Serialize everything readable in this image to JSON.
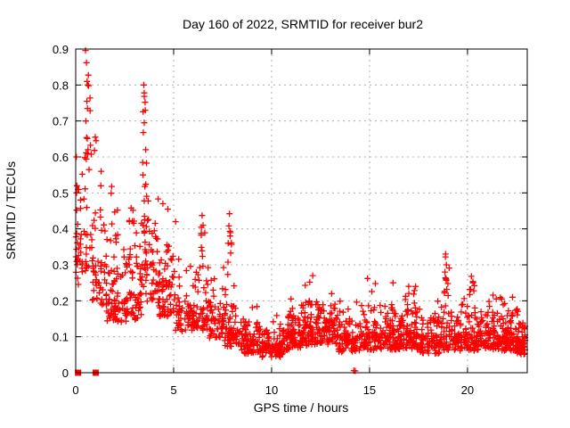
{
  "page": {
    "background_color": "#ffffff"
  },
  "chart_data": {
    "type": "scatter",
    "title": "Day 160 of 2022, SRMTID for receiver bur2",
    "xlabel": "GPS time / hours",
    "ylabel": "SRMTID / TECUs",
    "xlim": [
      0,
      23.05
    ],
    "ylim": [
      0,
      0.9
    ],
    "xticks": [
      0,
      5,
      10,
      15,
      20
    ],
    "yticks": [
      0,
      0.1,
      0.2,
      0.3,
      0.4,
      0.5,
      0.6,
      0.7,
      0.8,
      0.9
    ],
    "grid": true,
    "grid_style": "dashed",
    "grid_color": "#b0b0b0",
    "axis_color": "#000000",
    "legend": "none",
    "marker": {
      "shape": "plus",
      "color": "#ff0000",
      "size": 7
    },
    "description": "Dense scatter of SRMTID values vs GPS time; high variability 0-5 h with peaks to 0.9 TECUs near 0.5 h and 0.8 TECUs near 3.5 h, decaying to a noisy 0.05-0.2 band after 8 h with minor spikes near 19 h (0.33) and 20.2 h (0.27).",
    "zero_flag_points": [
      [
        0.12,
        0
      ],
      [
        1.02,
        0
      ]
    ],
    "peak_points": [
      [
        0.5,
        0.896
      ],
      [
        0.55,
        0.862
      ],
      [
        0.58,
        0.81
      ],
      [
        0.62,
        0.8
      ],
      [
        0.66,
        0.798
      ],
      [
        0.73,
        0.764
      ],
      [
        0.6,
        0.735
      ],
      [
        0.52,
        0.7
      ],
      [
        0.03,
        0.6
      ],
      [
        0.06,
        0.52
      ],
      [
        0.04,
        0.5
      ],
      [
        0.05,
        0.452
      ],
      [
        1.0,
        0.655
      ],
      [
        1.04,
        0.645
      ],
      [
        0.96,
        0.618
      ],
      [
        1.3,
        0.56
      ],
      [
        1.28,
        0.52
      ],
      [
        3.48,
        0.8
      ],
      [
        3.5,
        0.778
      ],
      [
        3.54,
        0.752
      ],
      [
        3.55,
        0.73
      ],
      [
        3.5,
        0.695
      ],
      [
        3.45,
        0.668
      ],
      [
        3.58,
        0.62
      ],
      [
        3.42,
        0.585
      ],
      [
        4.45,
        0.47
      ],
      [
        4.7,
        0.455
      ],
      [
        5.1,
        0.42
      ],
      [
        6.45,
        0.437
      ],
      [
        6.5,
        0.41
      ],
      [
        7.85,
        0.442
      ],
      [
        7.82,
        0.408
      ],
      [
        7.88,
        0.38
      ],
      [
        11.95,
        0.252
      ],
      [
        12.1,
        0.27
      ],
      [
        14.9,
        0.262
      ],
      [
        15.3,
        0.248
      ],
      [
        16.2,
        0.25
      ],
      [
        17.35,
        0.24
      ],
      [
        18.88,
        0.33
      ],
      [
        18.92,
        0.3
      ],
      [
        18.85,
        0.28
      ],
      [
        18.9,
        0.262
      ],
      [
        19.0,
        0.248
      ],
      [
        18.82,
        0.222
      ],
      [
        20.2,
        0.268
      ],
      [
        20.28,
        0.25
      ],
      [
        14.2,
        0.006
      ],
      [
        14.27,
        0.005
      ],
      [
        21.75,
        0.205
      ],
      [
        22.3,
        0.21
      ],
      [
        22.88,
        0.125
      ]
    ],
    "cloud_bands": {
      "columns": [
        "x_start",
        "x_end",
        "count",
        "y_low",
        "y_median",
        "y_high"
      ],
      "rows": [
        [
          0.0,
          0.15,
          16,
          0.2,
          0.33,
          0.62
        ],
        [
          0.1,
          0.9,
          34,
          0.25,
          0.38,
          0.6
        ],
        [
          0.45,
          0.8,
          13,
          0.45,
          0.62,
          0.88
        ],
        [
          0.85,
          1.6,
          48,
          0.15,
          0.3,
          0.56
        ],
        [
          1.8,
          2.15,
          10,
          0.33,
          0.44,
          0.56
        ],
        [
          1.55,
          2.65,
          75,
          0.12,
          0.21,
          0.38
        ],
        [
          2.7,
          3.05,
          9,
          0.3,
          0.42,
          0.54
        ],
        [
          2.6,
          3.35,
          55,
          0.13,
          0.21,
          0.42
        ],
        [
          3.4,
          3.7,
          13,
          0.35,
          0.55,
          0.78
        ],
        [
          3.35,
          4.25,
          62,
          0.16,
          0.3,
          0.52
        ],
        [
          4.25,
          5.0,
          60,
          0.13,
          0.25,
          0.47
        ],
        [
          5.0,
          6.05,
          68,
          0.1,
          0.17,
          0.33
        ],
        [
          6.05,
          6.75,
          46,
          0.1,
          0.18,
          0.4
        ],
        [
          6.4,
          6.6,
          7,
          0.28,
          0.36,
          0.43
        ],
        [
          6.75,
          7.65,
          58,
          0.08,
          0.15,
          0.3
        ],
        [
          7.75,
          7.95,
          8,
          0.25,
          0.34,
          0.44
        ],
        [
          7.6,
          8.45,
          62,
          0.06,
          0.12,
          0.25
        ],
        [
          8.45,
          9.4,
          80,
          0.04,
          0.09,
          0.19
        ],
        [
          9.4,
          10.6,
          90,
          0.03,
          0.08,
          0.16
        ],
        [
          10.6,
          11.6,
          88,
          0.05,
          0.11,
          0.22
        ],
        [
          11.6,
          12.45,
          82,
          0.06,
          0.13,
          0.26
        ],
        [
          12.45,
          13.4,
          88,
          0.06,
          0.13,
          0.23
        ],
        [
          13.4,
          14.6,
          90,
          0.04,
          0.1,
          0.2
        ],
        [
          14.6,
          15.65,
          84,
          0.05,
          0.11,
          0.24
        ],
        [
          15.65,
          16.65,
          84,
          0.05,
          0.11,
          0.24
        ],
        [
          16.65,
          17.6,
          82,
          0.05,
          0.11,
          0.25
        ],
        [
          17.6,
          18.6,
          80,
          0.04,
          0.1,
          0.2
        ],
        [
          18.75,
          19.1,
          8,
          0.2,
          0.26,
          0.33
        ],
        [
          18.6,
          19.6,
          76,
          0.05,
          0.1,
          0.2
        ],
        [
          20.1,
          20.4,
          7,
          0.2,
          0.24,
          0.27
        ],
        [
          19.6,
          20.6,
          80,
          0.05,
          0.1,
          0.21
        ],
        [
          20.6,
          21.6,
          84,
          0.05,
          0.11,
          0.22
        ],
        [
          21.6,
          22.4,
          80,
          0.05,
          0.1,
          0.22
        ],
        [
          22.4,
          22.95,
          70,
          0.04,
          0.09,
          0.18
        ]
      ]
    },
    "seed": 160
  }
}
